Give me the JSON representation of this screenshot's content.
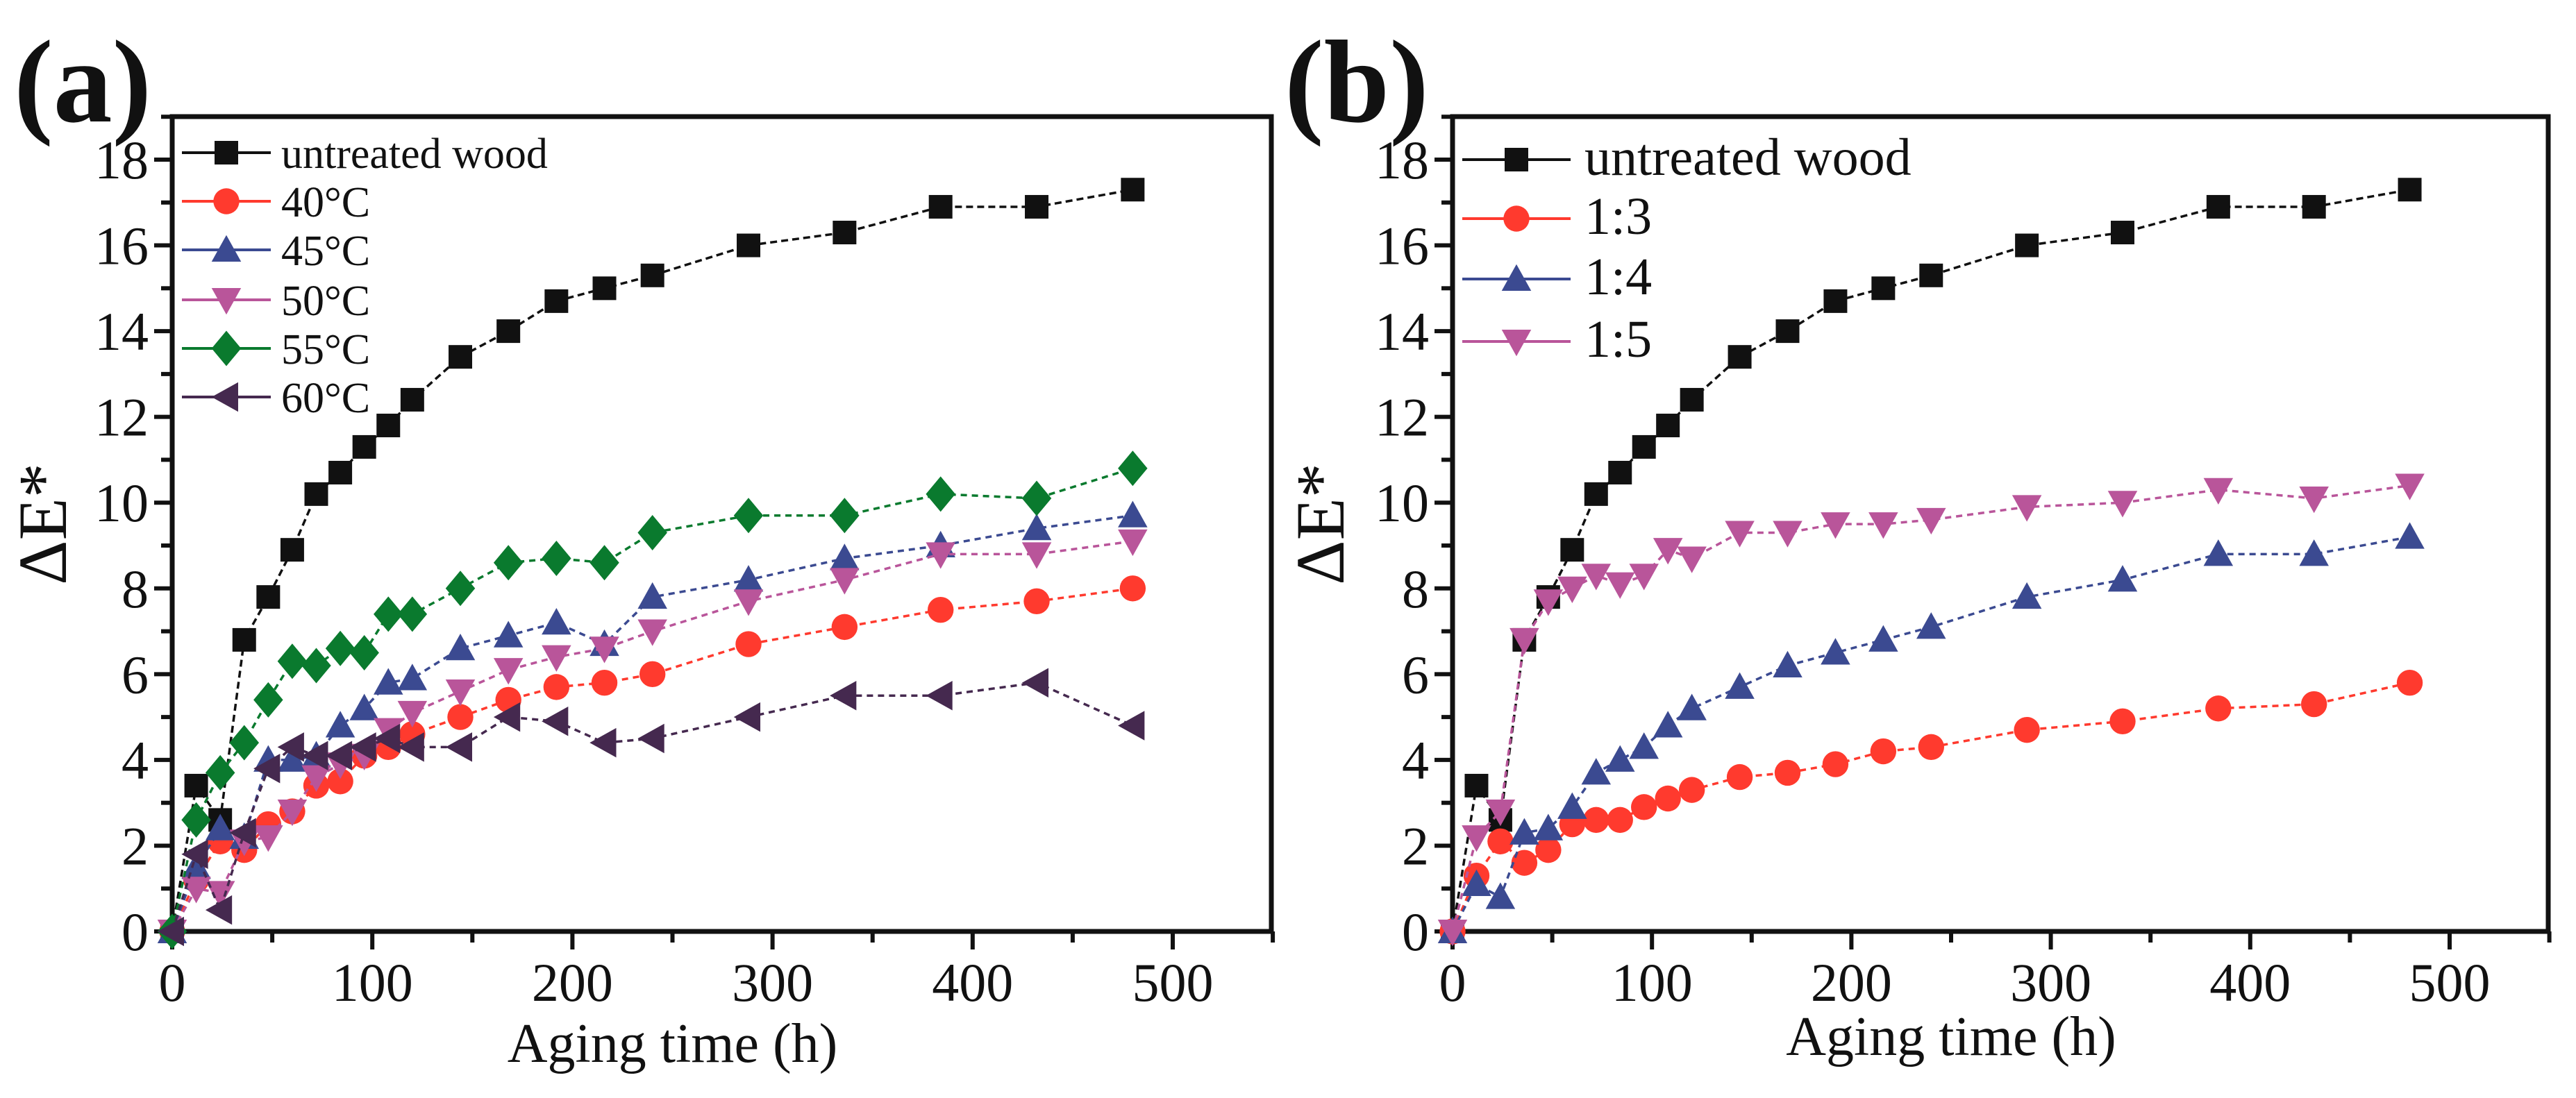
{
  "chart_data": [
    {
      "type": "line",
      "panel_label": "(a)",
      "xlabel": "Aging time (h)",
      "ylabel": "ΔE*",
      "xlim": [
        0,
        550
      ],
      "ylim": [
        0,
        19
      ],
      "xticks": [
        0,
        100,
        200,
        300,
        400,
        500
      ],
      "yticks": [
        0,
        2,
        4,
        6,
        8,
        10,
        12,
        14,
        16,
        18
      ],
      "legend_position": "top-left",
      "x": [
        0,
        12,
        24,
        36,
        48,
        60,
        72,
        84,
        96,
        108,
        120,
        144,
        168,
        192,
        216,
        240,
        288,
        336,
        384,
        432,
        480
      ],
      "series": [
        {
          "name": "untreated wood",
          "color": "#111111",
          "marker": "square",
          "values": [
            0,
            3.4,
            2.6,
            6.8,
            7.8,
            8.9,
            10.2,
            10.7,
            11.3,
            11.8,
            12.4,
            13.4,
            14.0,
            14.7,
            15.0,
            15.3,
            16.0,
            16.3,
            16.9,
            16.9,
            17.3
          ]
        },
        {
          "name": "40°C",
          "color": "#ff3a2e",
          "marker": "circle",
          "values": [
            0,
            1.2,
            2.1,
            1.9,
            2.5,
            2.8,
            3.4,
            3.5,
            4.1,
            4.3,
            4.6,
            5.0,
            5.4,
            5.7,
            5.8,
            6.0,
            6.7,
            7.1,
            7.5,
            7.7,
            8.0
          ]
        },
        {
          "name": "45°C",
          "color": "#3b4a91",
          "marker": "triangle-up",
          "values": [
            0,
            1.5,
            2.4,
            2.2,
            4.0,
            4.0,
            4.1,
            4.8,
            5.2,
            5.8,
            5.9,
            6.6,
            6.9,
            7.2,
            6.7,
            7.8,
            8.2,
            8.7,
            9.0,
            9.4,
            9.7
          ]
        },
        {
          "name": "50°C",
          "color": "#b9559a",
          "marker": "triangle-down",
          "values": [
            0,
            1.0,
            0.9,
            2.1,
            2.2,
            2.8,
            3.6,
            3.9,
            4.1,
            4.7,
            5.1,
            5.6,
            6.1,
            6.4,
            6.6,
            7.0,
            7.7,
            8.2,
            8.8,
            8.8,
            9.1
          ]
        },
        {
          "name": "55°C",
          "color": "#0a7a2e",
          "marker": "diamond",
          "values": [
            0,
            2.6,
            3.7,
            4.4,
            5.4,
            6.3,
            6.2,
            6.6,
            6.5,
            7.4,
            7.4,
            8.0,
            8.6,
            8.7,
            8.6,
            9.3,
            9.7,
            9.7,
            10.2,
            10.1,
            10.8
          ]
        },
        {
          "name": "60°C",
          "color": "#45294f",
          "marker": "triangle-left",
          "values": [
            0,
            1.8,
            0.5,
            2.3,
            3.8,
            4.3,
            4.1,
            4.1,
            4.3,
            4.5,
            4.3,
            4.3,
            5.0,
            4.9,
            4.4,
            4.5,
            5.0,
            5.5,
            5.5,
            5.8,
            4.8
          ]
        }
      ]
    },
    {
      "type": "line",
      "panel_label": "(b)",
      "xlabel": "Aging time (h)",
      "ylabel": "ΔE*",
      "xlim": [
        0,
        550
      ],
      "ylim": [
        0,
        19
      ],
      "xticks": [
        0,
        100,
        200,
        300,
        400,
        500
      ],
      "yticks": [
        0,
        2,
        4,
        6,
        8,
        10,
        12,
        14,
        16,
        18
      ],
      "legend_position": "top-left",
      "x": [
        0,
        12,
        24,
        36,
        48,
        60,
        72,
        84,
        96,
        108,
        120,
        144,
        168,
        192,
        216,
        240,
        288,
        336,
        384,
        432,
        480
      ],
      "series": [
        {
          "name": "untreated wood",
          "color": "#111111",
          "marker": "square",
          "values": [
            0,
            3.4,
            2.6,
            6.8,
            7.8,
            8.9,
            10.2,
            10.7,
            11.3,
            11.8,
            12.4,
            13.4,
            14.0,
            14.7,
            15.0,
            15.3,
            16.0,
            16.3,
            16.9,
            16.9,
            17.3
          ]
        },
        {
          "name": "1:3",
          "color": "#ff3a2e",
          "marker": "circle",
          "values": [
            0,
            1.3,
            2.1,
            1.6,
            1.9,
            2.5,
            2.6,
            2.6,
            2.9,
            3.1,
            3.3,
            3.6,
            3.7,
            3.9,
            4.2,
            4.3,
            4.7,
            4.9,
            5.2,
            5.3,
            5.8
          ]
        },
        {
          "name": "1:4",
          "color": "#3b4a91",
          "marker": "triangle-up",
          "values": [
            0,
            1.1,
            0.8,
            2.3,
            2.4,
            2.9,
            3.7,
            4.0,
            4.3,
            4.8,
            5.2,
            5.7,
            6.2,
            6.5,
            6.8,
            7.1,
            7.8,
            8.2,
            8.8,
            8.8,
            9.2
          ]
        },
        {
          "name": "1:5",
          "color": "#b9559a",
          "marker": "triangle-down",
          "values": [
            0,
            2.2,
            2.8,
            6.8,
            7.7,
            8.0,
            8.3,
            8.1,
            8.3,
            8.9,
            8.7,
            9.3,
            9.3,
            9.5,
            9.5,
            9.6,
            9.9,
            10.0,
            10.3,
            10.1,
            10.4
          ]
        }
      ]
    }
  ]
}
